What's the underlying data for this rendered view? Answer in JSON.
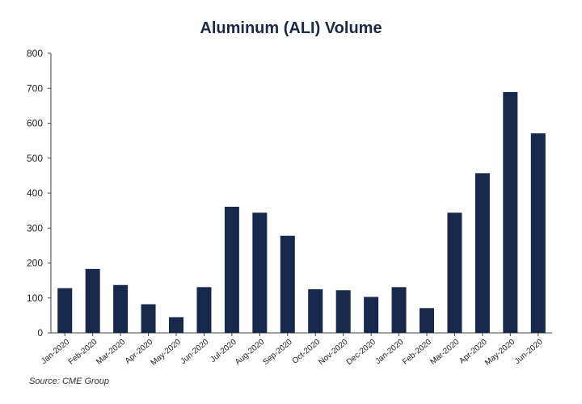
{
  "chart_data": {
    "type": "bar",
    "title": "Aluminum (ALI) Volume",
    "xlabel": "",
    "ylabel": "",
    "categories": [
      "Jan-2020",
      "Feb-2020",
      "Mar-2020",
      "Apr-2020",
      "May-2020",
      "Jun-2020",
      "Jul-2020",
      "Aug-2020",
      "Sep-2020",
      "Oct-2020",
      "Nov-2020",
      "Dec-2020",
      "Jan-2020",
      "Feb-2020",
      "Mar-2020",
      "Apr-2020",
      "May-2020",
      "Jun-2020"
    ],
    "values": [
      128,
      183,
      137,
      82,
      45,
      131,
      361,
      344,
      278,
      125,
      122,
      103,
      131,
      71,
      344,
      457,
      689,
      571
    ],
    "ylim": [
      0,
      800
    ],
    "yticks": [
      0,
      100,
      200,
      300,
      400,
      500,
      600,
      700,
      800
    ],
    "grid": false,
    "bar_color": "#16294a"
  },
  "source": "Source: CME Group"
}
